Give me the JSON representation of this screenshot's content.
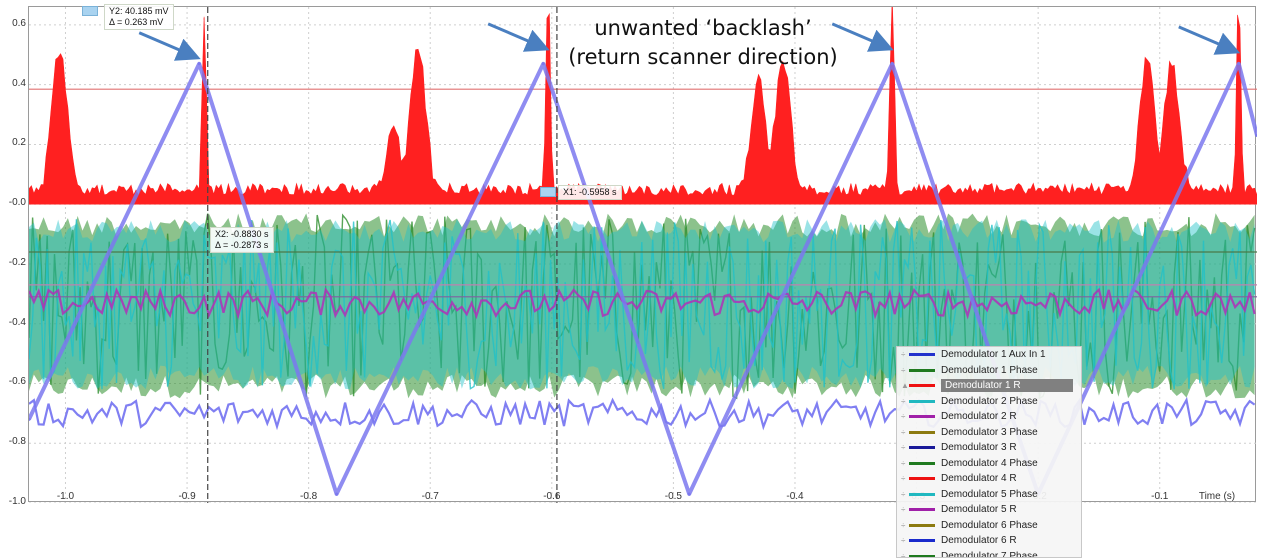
{
  "chart_data": {
    "type": "area",
    "xlabel": "Time (s)",
    "ylabel": "",
    "xlim": [
      -1.03,
      -0.02
    ],
    "ylim": [
      -1.0,
      0.66
    ],
    "x_ticks": [
      -1.0,
      -0.9,
      -0.8,
      -0.7,
      -0.6,
      -0.5,
      -0.4,
      -0.3,
      -0.2,
      -0.1
    ],
    "x_tick_labels": [
      "-1.0",
      "-0.9",
      "-0.8",
      "-0.7",
      "-0.6",
      "-0.5",
      "-0.4",
      "-0.3",
      "-0.2",
      "-0.1"
    ],
    "y_ticks": [
      -1.0,
      -0.8,
      -0.6,
      -0.4,
      -0.2,
      0.0,
      0.2,
      0.4,
      0.6
    ],
    "y_tick_labels": [
      "-1.0",
      "-0.8",
      "-0.6",
      "-0.4",
      "-0.2",
      "-0.0",
      "0.2",
      "0.4",
      "0.6"
    ],
    "grid": true,
    "legend_position": "bottom-right",
    "series": [
      {
        "name": "Demodulator 1 Aux In 1",
        "color": "#7b78ee",
        "style": "triangle-scan",
        "x": [
          -1.03,
          -0.89,
          -0.777,
          -0.607,
          -0.487,
          -0.32,
          -0.2,
          -0.035,
          -0.02
        ],
        "values": [
          -0.72,
          0.47,
          -0.97,
          0.47,
          -0.97,
          0.47,
          -0.97,
          0.47,
          0.23
        ]
      },
      {
        "name": "Demodulator 1 R",
        "color": "#ff2020",
        "style": "filled-spikes",
        "baseline": 0.03,
        "peaks": [
          {
            "x": -1.005,
            "y": 0.49
          },
          {
            "x": -0.886,
            "y": 0.62
          },
          {
            "x": -0.73,
            "y": 0.22
          },
          {
            "x": -0.71,
            "y": 0.5
          },
          {
            "x": -0.603,
            "y": 0.68
          },
          {
            "x": -0.43,
            "y": 0.38
          },
          {
            "x": -0.41,
            "y": 0.45
          },
          {
            "x": -0.32,
            "y": 0.68
          },
          {
            "x": -0.11,
            "y": 0.47
          },
          {
            "x": -0.09,
            "y": 0.44
          },
          {
            "x": -0.035,
            "y": 0.68
          }
        ]
      },
      {
        "name": "Demodulator 1 Phase",
        "color": "#2e8f2e",
        "style": "noise-band",
        "band": [
          -0.65,
          -0.03
        ]
      },
      {
        "name": "Demodulator 2 Phase",
        "color": "#20c0c8",
        "style": "noise-band",
        "band": [
          -0.62,
          -0.05
        ]
      },
      {
        "name": "Demodulator 2 R",
        "color": "#b030b8",
        "style": "noisy-line",
        "level": -0.33
      },
      {
        "name": "Demodulator 1 Aux In 1 (lower trace)",
        "color": "#6a68f0",
        "style": "noisy-line",
        "level": -0.7
      }
    ],
    "reference_lines": [
      {
        "y": 0.385,
        "color": "#e07070"
      },
      {
        "y": -0.16,
        "color": "#4a7a4a"
      },
      {
        "y": -0.27,
        "color": "#c080b0"
      },
      {
        "y": -0.31,
        "color": "#8060a0"
      }
    ],
    "cursors": {
      "x1_pos": -0.5958,
      "x2_pos": -0.883,
      "y2_pos": 0.6445,
      "y1_box_label": "Y2: 40.185 mV",
      "y1_delta": "Δ = 0.263 mV",
      "x1_label": "X1: -0.5958 s",
      "x2_label": "X2: -0.8830 s",
      "x2_delta": "Δ = -0.2873 s"
    },
    "arrow_targets": [
      {
        "x": -0.89,
        "y": 0.5
      },
      {
        "x": -0.603,
        "y": 0.53
      },
      {
        "x": -0.32,
        "y": 0.53
      },
      {
        "x": -0.035,
        "y": 0.52
      }
    ],
    "annotation": [
      "unwanted ‘backlash’",
      "(return scanner direction)"
    ]
  },
  "legend": {
    "items": [
      {
        "label": "Demodulator 1 Aux In 1",
        "color": "#2233cc",
        "selected": false
      },
      {
        "label": "Demodulator 1 Phase",
        "color": "#1f7a1f",
        "selected": false
      },
      {
        "label": "Demodulator 1 R",
        "color": "#ee1111",
        "selected": true
      },
      {
        "label": "Demodulator 2 Phase",
        "color": "#20b8c0",
        "selected": false
      },
      {
        "label": "Demodulator 2 R",
        "color": "#a020a8",
        "selected": false
      },
      {
        "label": "Demodulator 3 Phase",
        "color": "#8c7a10",
        "selected": false
      },
      {
        "label": "Demodulator 3 R",
        "color": "#1a1a99",
        "selected": false
      },
      {
        "label": "Demodulator 4 Phase",
        "color": "#1f7a1f",
        "selected": false
      },
      {
        "label": "Demodulator 4 R",
        "color": "#ee1111",
        "selected": false
      },
      {
        "label": "Demodulator 5 Phase",
        "color": "#20b8c0",
        "selected": false
      },
      {
        "label": "Demodulator 5 R",
        "color": "#a020a8",
        "selected": false
      },
      {
        "label": "Demodulator 6 Phase",
        "color": "#8c7a10",
        "selected": false
      },
      {
        "label": "Demodulator 6 R",
        "color": "#1a2acc",
        "selected": false
      },
      {
        "label": "Demodulator 7 Phase",
        "color": "#1f7a1f",
        "selected": false
      }
    ]
  },
  "colors": {
    "arrow": "#4a7fc0",
    "cursor_line": "#444444",
    "cursor_flag": "#a9d3f0",
    "grid": "#cfcfcf"
  }
}
